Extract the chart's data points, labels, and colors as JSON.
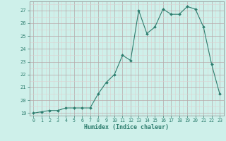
{
  "x": [
    0,
    1,
    2,
    3,
    4,
    5,
    6,
    7,
    8,
    9,
    10,
    11,
    12,
    13,
    14,
    15,
    16,
    17,
    18,
    19,
    20,
    21,
    22,
    23
  ],
  "y": [
    19.0,
    19.1,
    19.2,
    19.2,
    19.4,
    19.4,
    19.4,
    19.4,
    20.5,
    21.4,
    22.0,
    23.5,
    23.1,
    27.0,
    25.2,
    25.7,
    27.1,
    26.7,
    26.7,
    27.3,
    27.1,
    25.7,
    22.8,
    20.5
  ],
  "xlabel": "Humidex (Indice chaleur)",
  "ylim": [
    18.8,
    27.7
  ],
  "xlim": [
    -0.5,
    23.5
  ],
  "yticks": [
    19,
    20,
    21,
    22,
    23,
    24,
    25,
    26,
    27
  ],
  "xticks": [
    0,
    1,
    2,
    3,
    4,
    5,
    6,
    7,
    8,
    9,
    10,
    11,
    12,
    13,
    14,
    15,
    16,
    17,
    18,
    19,
    20,
    21,
    22,
    23
  ],
  "line_color": "#2d7d6e",
  "marker_color": "#2d7d6e",
  "bg_color": "#cef0ea",
  "grid_color_major": "#b8a8a8",
  "grid_color_minor": "#ddd0d0",
  "xlabel_color": "#2d7d6e"
}
